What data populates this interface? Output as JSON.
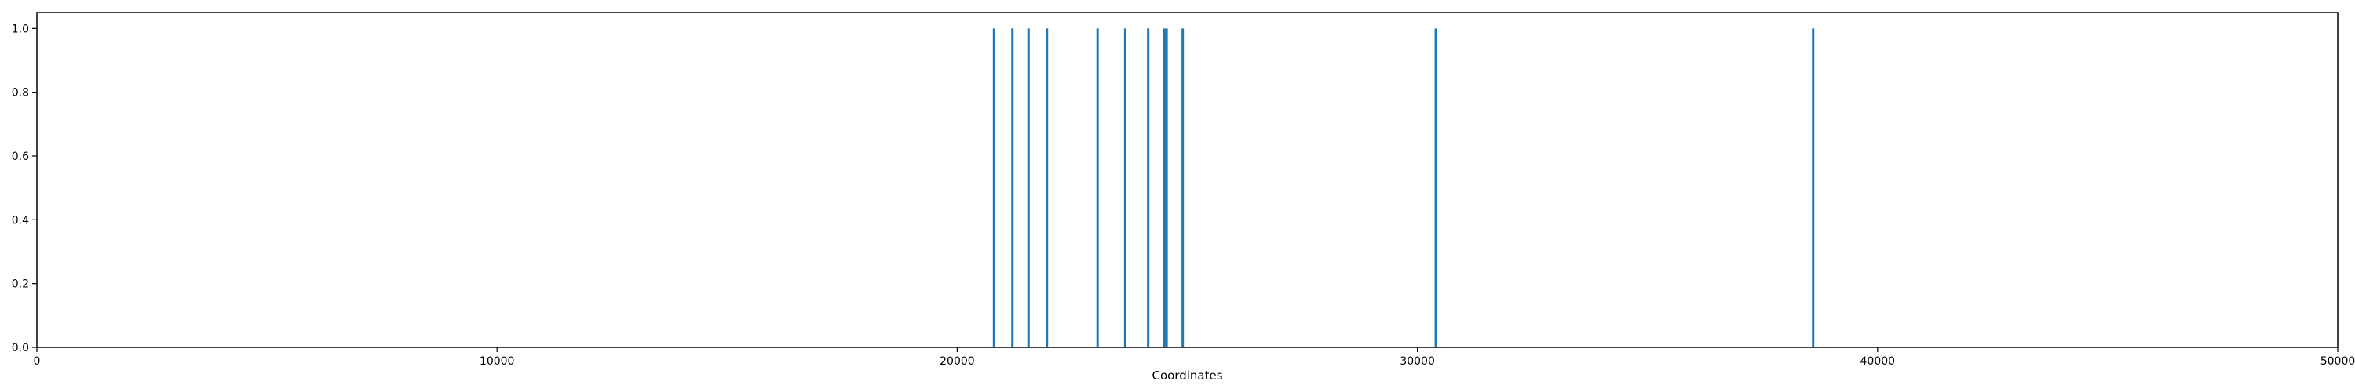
{
  "chart_data": {
    "type": "bar",
    "mark": "vertical-line",
    "x": [
      20800,
      21200,
      21550,
      21950,
      23050,
      23650,
      24150,
      24500,
      24550,
      24900,
      30400,
      38600
    ],
    "y": [
      1,
      1,
      1,
      1,
      1,
      1,
      1,
      1,
      1,
      1,
      1,
      1
    ],
    "xlabel": "Coordinates",
    "ylabel": "",
    "title": "",
    "xlim": [
      0,
      50000
    ],
    "ylim": [
      0,
      1.05
    ],
    "xticks": [
      0,
      10000,
      20000,
      30000,
      40000,
      50000
    ],
    "yticks": [
      0.0,
      0.2,
      0.4,
      0.6,
      0.8,
      1.0
    ],
    "xtick_labels": [
      "0",
      "10000",
      "20000",
      "30000",
      "40000",
      "50000"
    ],
    "ytick_labels": [
      "0.0",
      "0.2",
      "0.4",
      "0.6",
      "0.8",
      "1.0"
    ],
    "grid": false,
    "legend": "none",
    "colors": {
      "line": "#1f77b4",
      "axis": "#000000"
    }
  }
}
